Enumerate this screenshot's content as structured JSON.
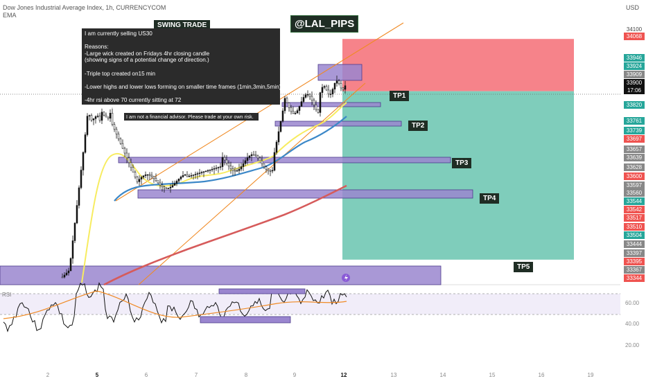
{
  "header": {
    "title": "Dow Jones Industrial Average Index, 1h, CURRENCYCOM",
    "indicator": "EMA",
    "currency": "USD"
  },
  "annotations": {
    "swing_trade": "SWING TRADE",
    "handle": "@LAL_PIPS",
    "note_text": "I am currently selling US30\n\nReasons:\n-Large wick created on Fridays 4hr closing candle\n(showing signs of a potential change of direction.)\n\n-Triple top created on15 min\n\n-Lower highs and lower lows forming on smaller time frames (1min,3min,5min)\n\n-4hr rsi above 70 currently sitting at 72\n (showing signs that price is currently in an overbought state)",
    "disclaimer": "I am not a financial advisor. Please trade at your own risk.",
    "tp1": "TP1",
    "tp2": "TP2",
    "tp3": "TP3",
    "tp4": "TP4",
    "tp5": "TP5"
  },
  "colors": {
    "price_up": "#26a69a",
    "price_down": "#ef5350",
    "ema_yellow": "#f7ec60",
    "ema_blue": "#3c88c8",
    "ema_red": "#d65b5b",
    "trendline": "#f08a24",
    "zone": "#9a86cf",
    "stop_zone": "#f6838a",
    "target_zone": "#7fcdbb",
    "rsi_line": "#111111",
    "rsi_ma": "#f08a24",
    "rsi_band": "#f1edf9"
  },
  "chart_data": {
    "type": "line",
    "title": "Dow Jones Industrial Average Index, 1h, CURRENCYCOM",
    "x_ticks": [
      "2",
      "5",
      "6",
      "7",
      "8",
      "9",
      "12",
      "13",
      "14",
      "15",
      "16",
      "19"
    ],
    "y_ticks": [
      "34100",
      "33900",
      "33820",
      "33761",
      "33739",
      "33657",
      "33639",
      "33628",
      "33597",
      "33560",
      "33544",
      "33504",
      "33444",
      "33397",
      "33367",
      "33344"
    ],
    "current_price": "33900",
    "countdown": "17:06",
    "price_labels": [
      {
        "value": "34068",
        "kind": "down"
      },
      {
        "value": "33946",
        "kind": "up"
      },
      {
        "value": "33924",
        "kind": "up"
      },
      {
        "value": "33909",
        "kind": "neutral"
      },
      {
        "value": "33900",
        "kind": "current"
      },
      {
        "value": "33820",
        "kind": "up"
      },
      {
        "value": "33761",
        "kind": "up"
      },
      {
        "value": "33739",
        "kind": "up"
      },
      {
        "value": "33697",
        "kind": "down"
      },
      {
        "value": "33657",
        "kind": "neutral"
      },
      {
        "value": "33639",
        "kind": "neutral"
      },
      {
        "value": "33628",
        "kind": "neutral"
      },
      {
        "value": "33600",
        "kind": "down"
      },
      {
        "value": "33597",
        "kind": "neutral"
      },
      {
        "value": "33560",
        "kind": "neutral"
      },
      {
        "value": "33544",
        "kind": "up"
      },
      {
        "value": "33542",
        "kind": "down"
      },
      {
        "value": "33517",
        "kind": "down"
      },
      {
        "value": "33510",
        "kind": "down"
      },
      {
        "value": "33504",
        "kind": "up"
      },
      {
        "value": "33444",
        "kind": "neutral"
      },
      {
        "value": "33397",
        "kind": "neutral"
      },
      {
        "value": "33395",
        "kind": "down"
      },
      {
        "value": "33367",
        "kind": "neutral"
      },
      {
        "value": "33344",
        "kind": "down"
      }
    ],
    "trade": {
      "direction": "short",
      "entry": 33909,
      "stop": 34068,
      "targets": [
        33820,
        33761,
        33639,
        33560,
        33397
      ]
    },
    "rsi": {
      "label": "RSI",
      "ticks": [
        "60.00",
        "40.00",
        "20.00"
      ],
      "last": 72
    }
  }
}
